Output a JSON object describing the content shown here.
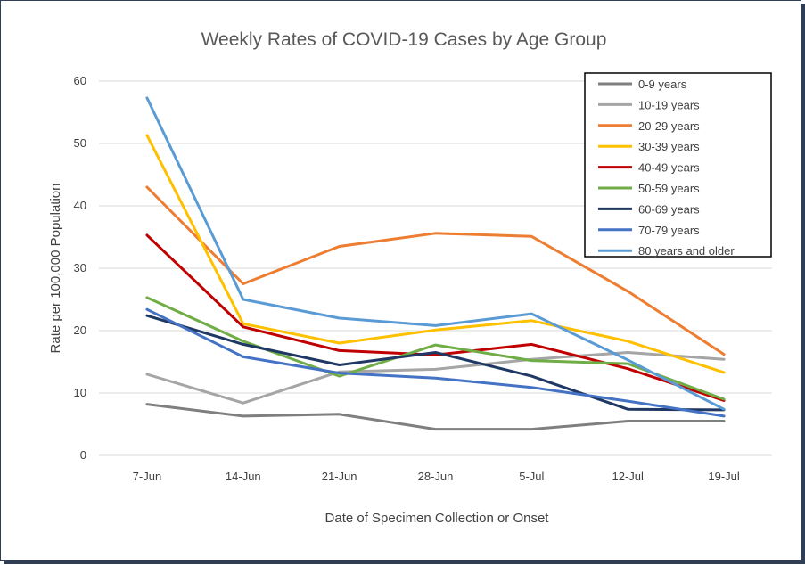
{
  "chart_data": {
    "type": "line",
    "title": "Weekly Rates of COVID-19 Cases by Age Group",
    "xlabel": "Date of Specimen Collection or Onset",
    "ylabel": "Rate per 100,000 Population",
    "x": [
      "7-Jun",
      "14-Jun",
      "21-Jun",
      "28-Jun",
      "5-Jul",
      "12-Jul",
      "19-Jul"
    ],
    "ylim": [
      0,
      60
    ],
    "yticks": [
      "0",
      "10",
      "20",
      "30",
      "40",
      "50",
      "60"
    ],
    "grid": "horizontal",
    "legend_position": "top-right",
    "series": [
      {
        "name": "0-9 years",
        "color": "#7f7f7f",
        "values": [
          8.2,
          6.3,
          6.6,
          4.2,
          4.2,
          5.5,
          5.5
        ]
      },
      {
        "name": "10-19 years",
        "color": "#a5a5a5",
        "values": [
          13.0,
          8.4,
          13.4,
          13.8,
          15.4,
          16.5,
          15.4
        ]
      },
      {
        "name": "20-29 years",
        "color": "#ed7d31",
        "values": [
          43.0,
          27.5,
          33.5,
          35.6,
          35.1,
          26.3,
          16.2
        ]
      },
      {
        "name": "30-39 years",
        "color": "#ffc000",
        "values": [
          51.3,
          21.1,
          18.0,
          20.1,
          21.6,
          18.3,
          13.3
        ]
      },
      {
        "name": "40-49 years",
        "color": "#c00000",
        "values": [
          35.3,
          20.6,
          16.8,
          16.1,
          17.8,
          13.9,
          8.8
        ]
      },
      {
        "name": "50-59 years",
        "color": "#70ad47",
        "values": [
          25.3,
          18.3,
          12.7,
          17.7,
          15.2,
          14.7,
          9.0
        ]
      },
      {
        "name": "60-69 years",
        "color": "#203864",
        "values": [
          22.4,
          17.8,
          14.5,
          16.5,
          12.7,
          7.4,
          7.3
        ]
      },
      {
        "name": "70-79 years",
        "color": "#4472c4",
        "values": [
          23.4,
          15.8,
          13.2,
          12.4,
          10.9,
          8.7,
          6.3
        ]
      },
      {
        "name": "80 years and older",
        "color": "#5b9bd5",
        "values": [
          57.3,
          25.0,
          22.0,
          20.8,
          22.7,
          15.3,
          7.4
        ]
      }
    ]
  }
}
